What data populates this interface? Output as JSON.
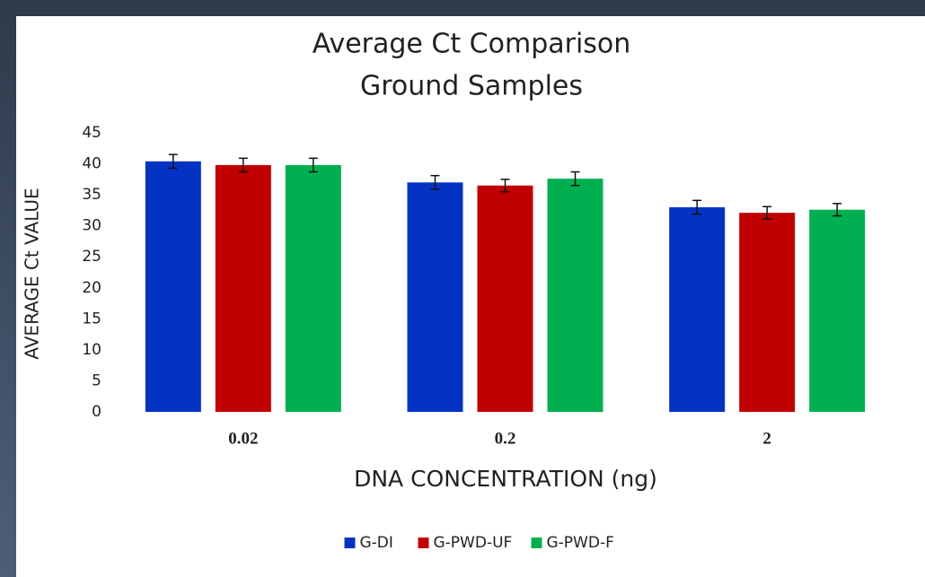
{
  "chart_data": {
    "type": "bar",
    "title": [
      "Average Ct Comparison",
      "Ground Samples"
    ],
    "x_label": "DNA CONCENTRATION (ng)",
    "y_label": "AVERAGE Ct VALUE",
    "categories": [
      "0.02",
      "0.2",
      "2"
    ],
    "series": [
      {
        "name": "G-DI",
        "color": "#0433c4",
        "values": [
          40.4,
          37.0,
          33.0
        ],
        "errors": [
          1.1,
          1.1,
          1.1
        ]
      },
      {
        "name": "G-PWD-UF",
        "color": "#c00000",
        "values": [
          39.8,
          36.5,
          32.1
        ],
        "errors": [
          1.1,
          1.0,
          1.0
        ]
      },
      {
        "name": "G-PWD-F",
        "color": "#00b050",
        "values": [
          39.8,
          37.6,
          32.6
        ],
        "errors": [
          1.1,
          1.1,
          1.0
        ]
      }
    ],
    "ylim": [
      0,
      45
    ],
    "yticks": [
      0,
      5,
      10,
      15,
      20,
      25,
      30,
      35,
      40,
      45
    ],
    "grid": false,
    "legend": "bottom"
  }
}
